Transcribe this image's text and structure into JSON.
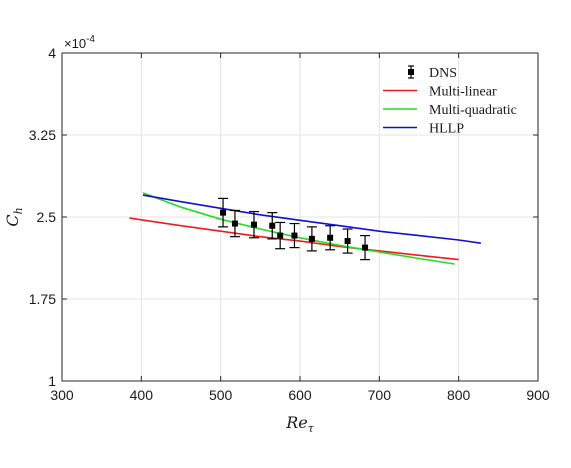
{
  "chart_data": {
    "type": "line",
    "title": "",
    "xlabel_base": "Re",
    "xlabel_sub": "τ",
    "ylabel_base": "C",
    "ylabel_sub": "h",
    "y_exponent_prefix": "×10",
    "y_exponent_power": "-4",
    "xlim": [
      300,
      900
    ],
    "ylim": [
      1,
      4
    ],
    "xticks": [
      300,
      400,
      500,
      600,
      700,
      800,
      900
    ],
    "yticks": [
      1,
      1.75,
      2.5,
      3.25,
      4
    ],
    "xtick_labels": [
      "300",
      "400",
      "500",
      "600",
      "700",
      "800",
      "900"
    ],
    "ytick_labels": [
      "1",
      "1.75",
      "2.5",
      "3.25",
      "4"
    ],
    "grid": true,
    "legend_position": "top-right",
    "colors": {
      "dns": "#000000",
      "multi_linear": "#ee1c1c",
      "multi_quadratic": "#1fe01f",
      "hllp": "#1010d0"
    },
    "legend": [
      {
        "label": "DNS",
        "style": "marker-errorbar",
        "color_key": "dns"
      },
      {
        "label": "Multi-linear",
        "style": "line",
        "color_key": "multi_linear"
      },
      {
        "label": "Multi-quadratic",
        "style": "line",
        "color_key": "multi_quadratic"
      },
      {
        "label": "HLLP",
        "style": "line",
        "color_key": "hllp"
      }
    ],
    "series": [
      {
        "name": "DNS",
        "kind": "errorbar",
        "x": [
          503,
          518,
          542,
          565,
          575,
          593,
          615,
          638,
          660,
          682
        ],
        "y": [
          2.54,
          2.44,
          2.43,
          2.42,
          2.33,
          2.33,
          2.3,
          2.31,
          2.28,
          2.22
        ],
        "err_low": [
          0.13,
          0.12,
          0.12,
          0.12,
          0.12,
          0.11,
          0.11,
          0.11,
          0.11,
          0.11
        ],
        "err_high": [
          0.13,
          0.12,
          0.12,
          0.12,
          0.12,
          0.11,
          0.11,
          0.11,
          0.11,
          0.11
        ]
      },
      {
        "name": "Multi-linear",
        "kind": "line",
        "x": [
          385,
          450,
          500,
          550,
          600,
          650,
          700,
          750,
          800
        ],
        "y": [
          2.49,
          2.42,
          2.37,
          2.32,
          2.28,
          2.23,
          2.19,
          2.15,
          2.11
        ]
      },
      {
        "name": "Multi-quadratic",
        "kind": "line",
        "x": [
          402,
          450,
          500,
          550,
          600,
          650,
          700,
          750,
          795
        ],
        "y": [
          2.72,
          2.59,
          2.48,
          2.39,
          2.31,
          2.24,
          2.18,
          2.12,
          2.07
        ]
      },
      {
        "name": "HLLP",
        "kind": "line",
        "x": [
          402,
          450,
          500,
          550,
          600,
          650,
          700,
          750,
          800,
          828
        ],
        "y": [
          2.7,
          2.64,
          2.58,
          2.52,
          2.47,
          2.42,
          2.37,
          2.33,
          2.29,
          2.26
        ]
      }
    ]
  }
}
